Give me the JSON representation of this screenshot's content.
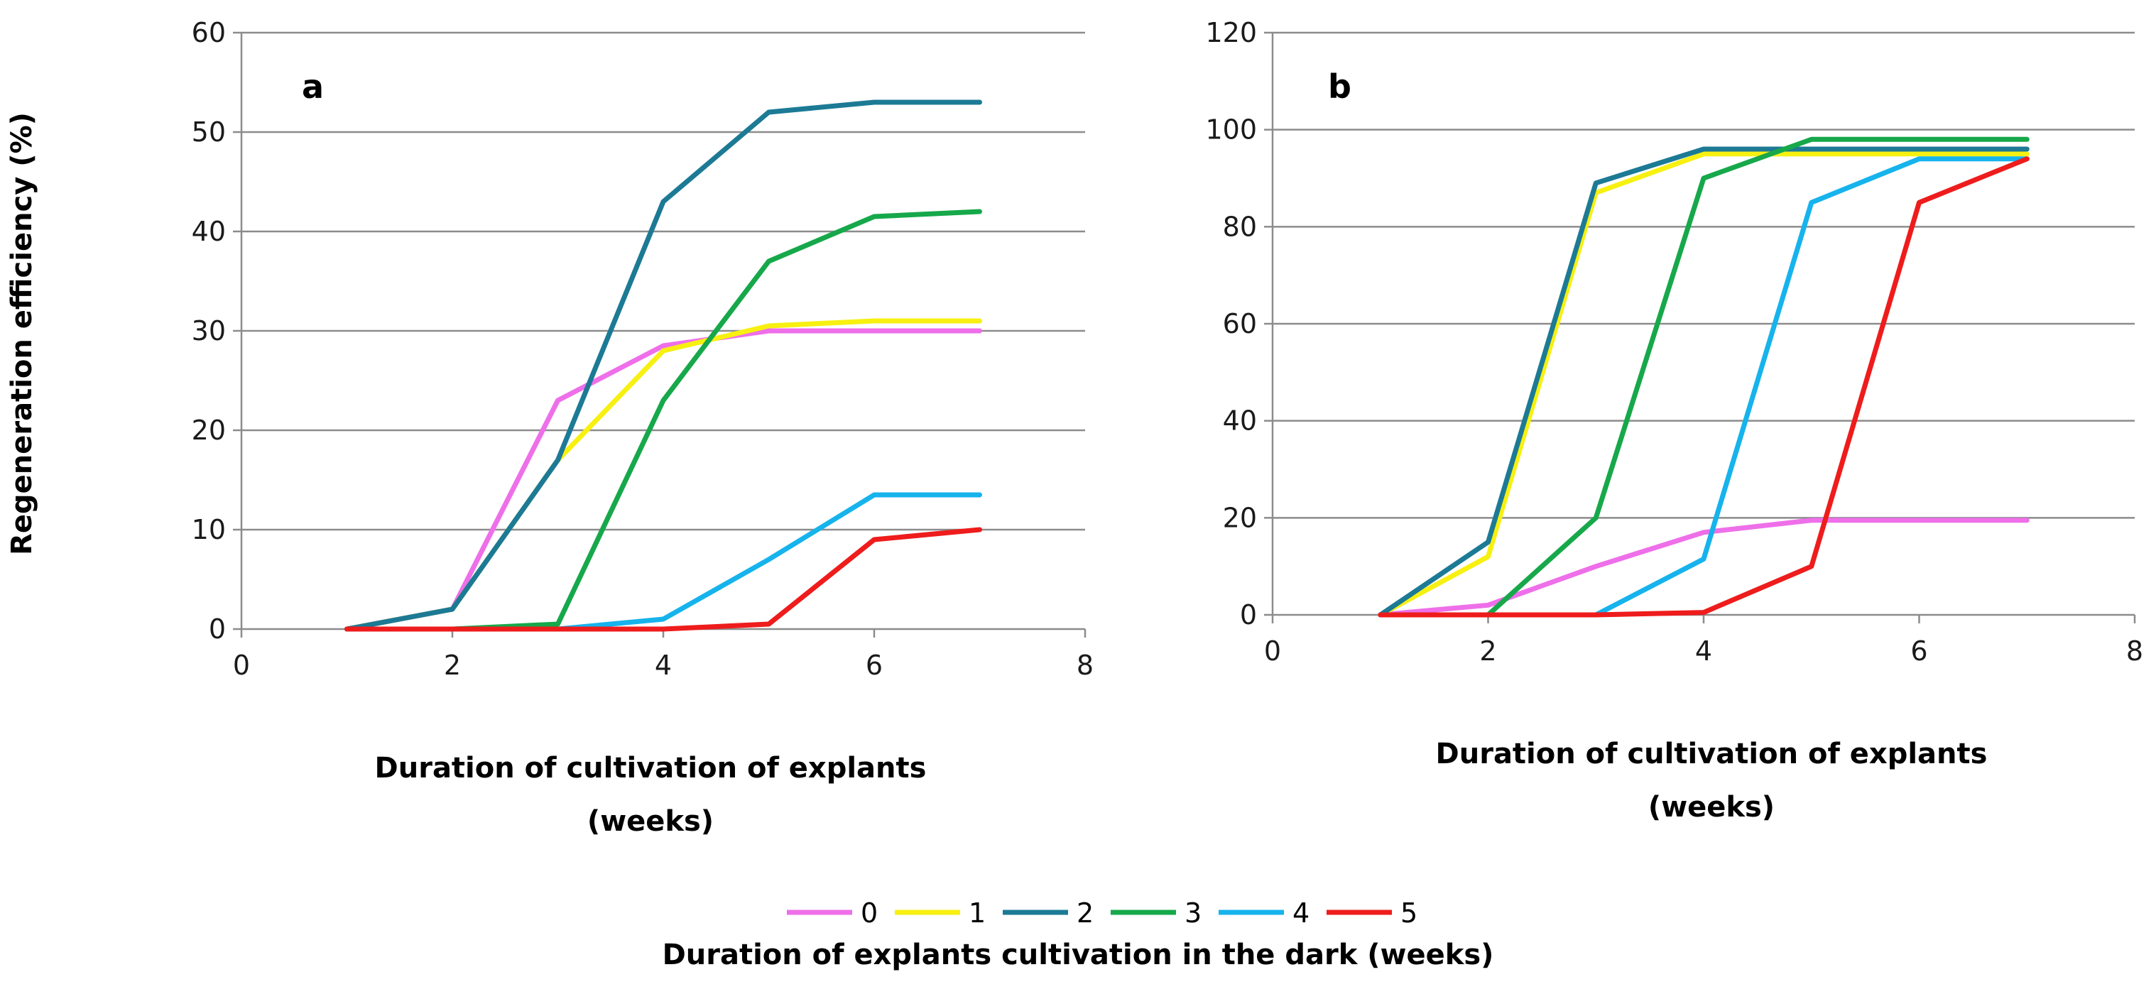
{
  "chart_data": [
    {
      "type": "line",
      "panel_label": "a",
      "xlabel_lines": [
        "Duration of cultivation of explants",
        "(weeks)"
      ],
      "ylabel": "Regeneration efficiency (%)",
      "xlim": [
        0,
        8
      ],
      "ylim": [
        0,
        60
      ],
      "x_ticks": [
        0,
        2,
        4,
        6,
        8
      ],
      "y_ticks": [
        0,
        10,
        20,
        30,
        40,
        50,
        60
      ],
      "grid": "horizontal",
      "x": [
        1,
        2,
        3,
        4,
        5,
        6,
        7
      ],
      "series": [
        {
          "name": "0",
          "color": "#ee6fe9",
          "values": [
            0,
            2,
            23,
            28.5,
            30,
            30,
            30
          ]
        },
        {
          "name": "1",
          "color": "#f7f011",
          "values": [
            0,
            2,
            17,
            28,
            30.5,
            31,
            31
          ]
        },
        {
          "name": "2",
          "color": "#1c7a95",
          "values": [
            0,
            2,
            17,
            43,
            52,
            53,
            53
          ]
        },
        {
          "name": "3",
          "color": "#16a84a",
          "values": [
            0,
            0,
            0.5,
            23,
            37,
            41.5,
            42
          ]
        },
        {
          "name": "4",
          "color": "#16b3ec",
          "values": [
            0,
            0,
            0,
            1,
            7,
            13.5,
            13.5
          ]
        },
        {
          "name": "5",
          "color": "#ee1c1c",
          "values": [
            0,
            0,
            0,
            0,
            0.5,
            9,
            10
          ]
        }
      ]
    },
    {
      "type": "line",
      "panel_label": "b",
      "xlabel_lines": [
        "Duration of cultivation of explants",
        "(weeks)"
      ],
      "ylabel": "",
      "xlim": [
        0,
        8
      ],
      "ylim": [
        0,
        120
      ],
      "x_ticks": [
        0,
        2,
        4,
        6,
        8
      ],
      "y_ticks": [
        0,
        20,
        40,
        60,
        80,
        100,
        120
      ],
      "grid": "horizontal",
      "x": [
        1,
        2,
        3,
        4,
        5,
        6,
        7
      ],
      "series": [
        {
          "name": "0",
          "color": "#ee6fe9",
          "values": [
            0,
            2,
            10,
            17,
            19.5,
            19.5,
            19.5
          ]
        },
        {
          "name": "1",
          "color": "#f7f011",
          "values": [
            0,
            12,
            87,
            95,
            95,
            95,
            95
          ]
        },
        {
          "name": "2",
          "color": "#1c7a95",
          "values": [
            0,
            15,
            89,
            96,
            96,
            96,
            96
          ]
        },
        {
          "name": "3",
          "color": "#16a84a",
          "values": [
            null,
            0,
            20,
            90,
            98,
            98,
            98
          ]
        },
        {
          "name": "4",
          "color": "#16b3ec",
          "values": [
            null,
            null,
            0,
            11.5,
            85,
            94,
            94
          ]
        },
        {
          "name": "5",
          "color": "#ee1c1c",
          "values": [
            0,
            0,
            0,
            0.5,
            10,
            85,
            94
          ]
        }
      ]
    }
  ],
  "legend": {
    "title": "Duration of explants cultivation in the dark (weeks)",
    "entries": [
      {
        "label": "0",
        "color": "#ee6fe9"
      },
      {
        "label": "1",
        "color": "#f7f011"
      },
      {
        "label": "2",
        "color": "#1c7a95"
      },
      {
        "label": "3",
        "color": "#16a84a"
      },
      {
        "label": "4",
        "color": "#16b3ec"
      },
      {
        "label": "5",
        "color": "#ee1c1c"
      }
    ]
  }
}
